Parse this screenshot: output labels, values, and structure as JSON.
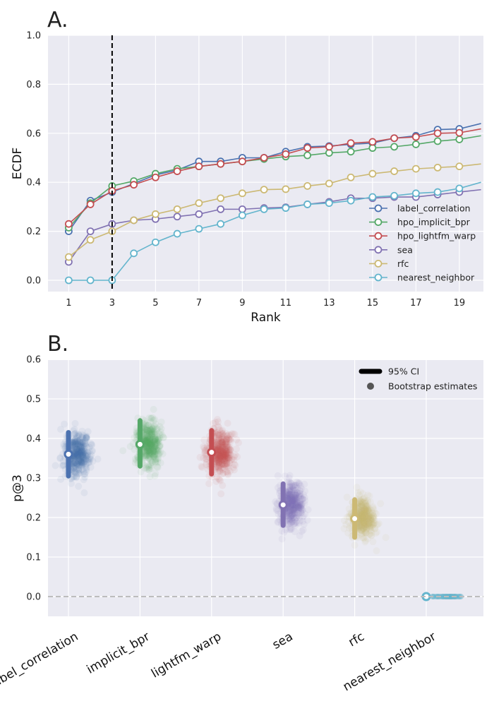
{
  "chart_data": [
    {
      "type": "line",
      "panel_label": "A.",
      "xlabel": "Rank",
      "ylabel": "ECDF",
      "xlim": [
        0,
        20
      ],
      "ylim": [
        -0.05,
        1.0
      ],
      "xticks": [
        1,
        3,
        5,
        7,
        9,
        11,
        13,
        15,
        17,
        19
      ],
      "yticks": [
        "0.0",
        "0.2",
        "0.4",
        "0.6",
        "0.8",
        "1.0"
      ],
      "vline_x": 3,
      "legend_position": "bottom-right",
      "x": [
        1,
        2,
        3,
        4,
        5,
        6,
        7,
        8,
        9,
        10,
        11,
        12,
        13,
        14,
        15,
        16,
        17,
        18,
        19,
        20
      ],
      "series": [
        {
          "name": "label_correlation",
          "color": "#4c72b0",
          "values": [
            0.2,
            0.325,
            0.36,
            0.395,
            0.43,
            0.45,
            0.485,
            0.485,
            0.5,
            0.5,
            0.525,
            0.545,
            0.548,
            0.555,
            0.56,
            0.58,
            0.59,
            0.615,
            0.618,
            0.64
          ]
        },
        {
          "name": "hpo_implicit_bpr",
          "color": "#55a868",
          "values": [
            0.215,
            0.315,
            0.385,
            0.405,
            0.435,
            0.455,
            0.465,
            0.475,
            0.485,
            0.495,
            0.505,
            0.51,
            0.52,
            0.525,
            0.54,
            0.545,
            0.555,
            0.568,
            0.575,
            0.59
          ]
        },
        {
          "name": "hpo_lightfm_warp",
          "color": "#c44e52",
          "values": [
            0.23,
            0.31,
            0.365,
            0.39,
            0.42,
            0.445,
            0.465,
            0.475,
            0.485,
            0.5,
            0.515,
            0.54,
            0.545,
            0.56,
            0.565,
            0.58,
            0.585,
            0.6,
            0.602,
            0.618
          ]
        },
        {
          "name": "sea",
          "color": "#8172b2",
          "values": [
            0.075,
            0.2,
            0.23,
            0.245,
            0.25,
            0.26,
            0.27,
            0.29,
            0.29,
            0.295,
            0.298,
            0.31,
            0.32,
            0.335,
            0.335,
            0.34,
            0.34,
            0.35,
            0.36,
            0.37
          ]
        },
        {
          "name": "rfc",
          "color": "#ccb974",
          "values": [
            0.095,
            0.165,
            0.2,
            0.245,
            0.27,
            0.29,
            0.315,
            0.335,
            0.355,
            0.37,
            0.372,
            0.385,
            0.395,
            0.42,
            0.435,
            0.445,
            0.455,
            0.46,
            0.465,
            0.475
          ]
        },
        {
          "name": "nearest_neighbor",
          "color": "#64b5cd",
          "values": [
            0.0,
            0.0,
            0.0,
            0.11,
            0.155,
            0.19,
            0.21,
            0.23,
            0.265,
            0.29,
            0.295,
            0.31,
            0.315,
            0.325,
            0.34,
            0.345,
            0.355,
            0.36,
            0.375,
            0.4
          ]
        }
      ]
    },
    {
      "type": "scatter",
      "panel_label": "B.",
      "ylabel": "p@3",
      "ylim": [
        -0.05,
        0.6
      ],
      "yticks": [
        "0.0",
        "0.1",
        "0.2",
        "0.3",
        "0.4",
        "0.5",
        "0.6"
      ],
      "hline_y": 0.0,
      "legend_position": "top-right",
      "legend": [
        {
          "label": "95% CI",
          "marker": "line"
        },
        {
          "label": "Bootstrap estimates",
          "marker": "dot"
        }
      ],
      "categories": [
        "label_correlation",
        "implicit_bpr",
        "lightfm_warp",
        "sea",
        "rfc",
        "nearest_neighbor"
      ],
      "colors": [
        "#4c72b0",
        "#55a868",
        "#c44e52",
        "#8172b2",
        "#ccb974",
        "#64b5cd"
      ],
      "estimates": [
        0.36,
        0.385,
        0.365,
        0.232,
        0.197,
        0.0
      ],
      "ci_low": [
        0.305,
        0.33,
        0.31,
        0.18,
        0.15,
        0.0
      ],
      "ci_high": [
        0.415,
        0.445,
        0.42,
        0.285,
        0.245,
        0.0
      ],
      "bootstrap_spread": [
        0.028,
        0.028,
        0.028,
        0.026,
        0.024,
        0.0
      ]
    }
  ]
}
